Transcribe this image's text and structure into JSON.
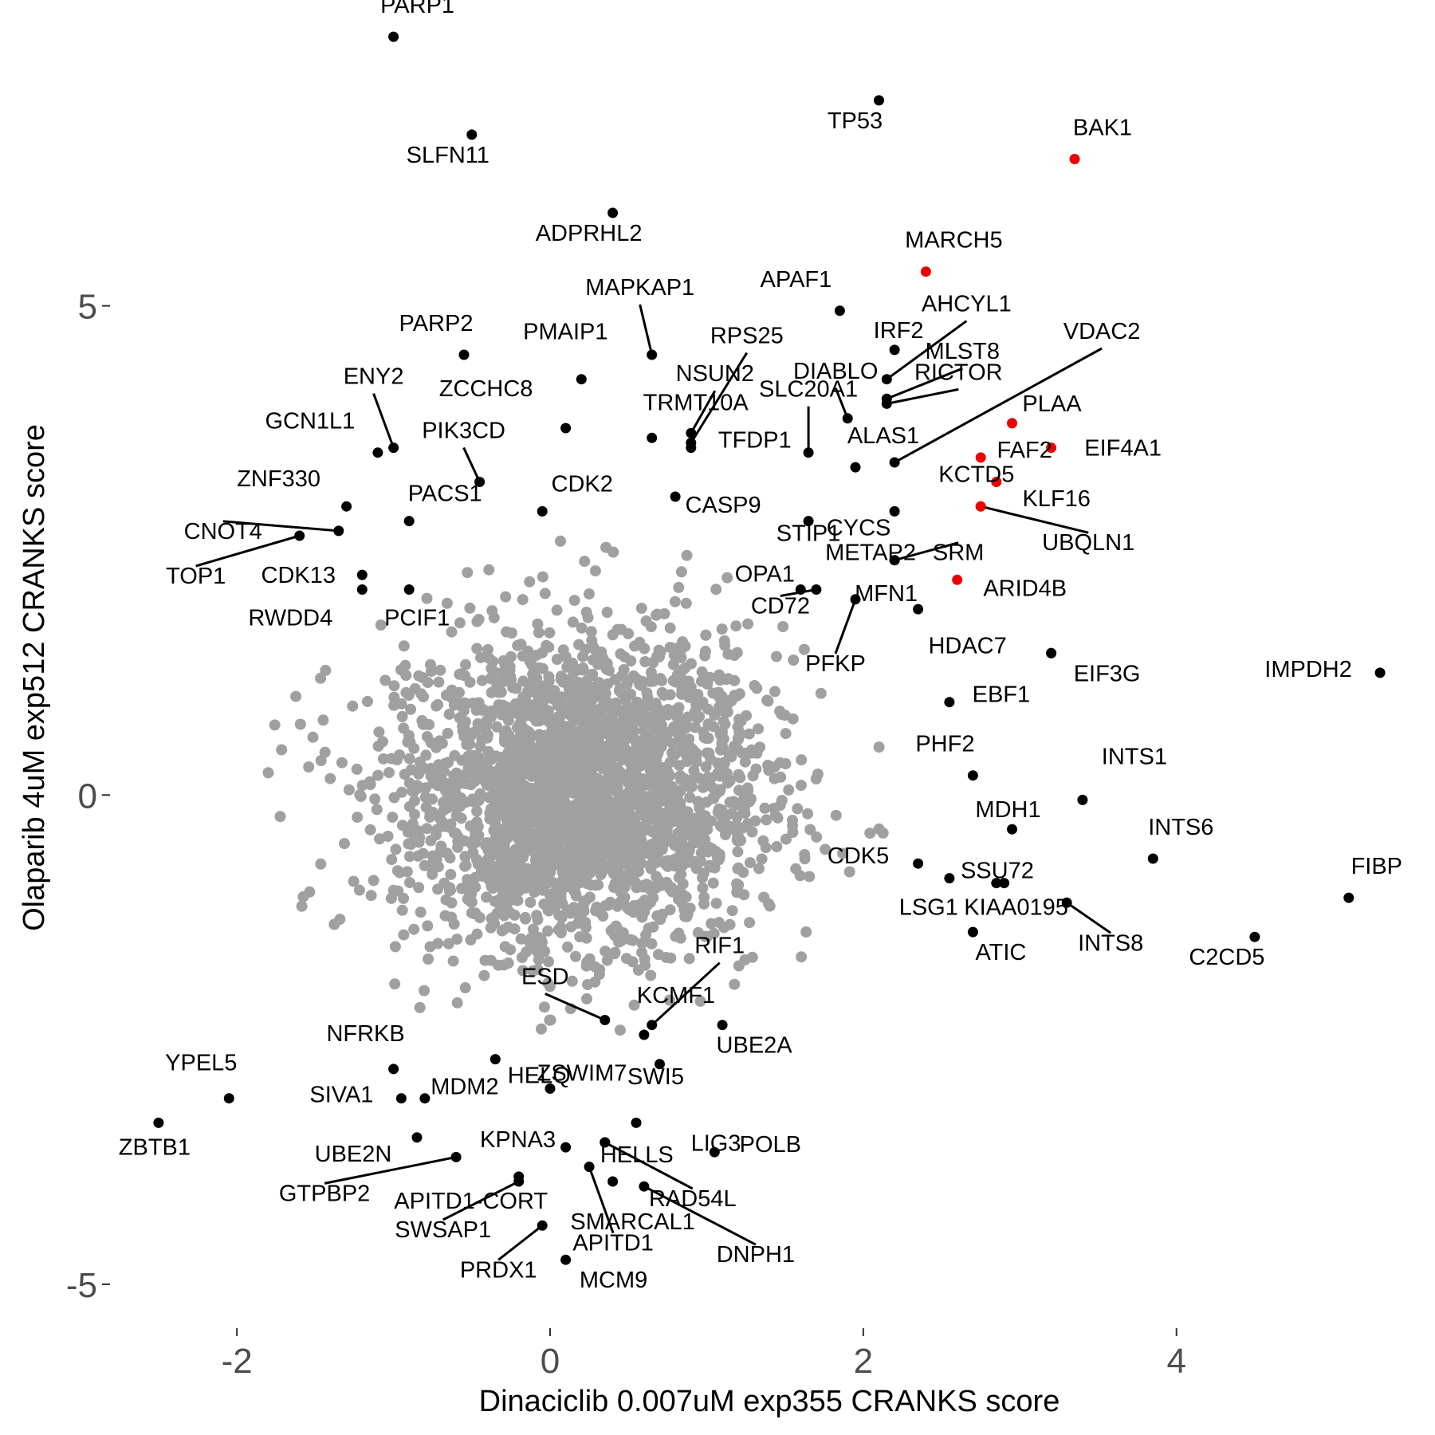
{
  "chart_data": {
    "type": "scatter",
    "xlabel": "Dinaciclib 0.007uM exp355 CRANKS score",
    "ylabel": "Olaparib 4uM exp512 CRANKS score",
    "xlim": [
      -2.8,
      5.6
    ],
    "ylim": [
      -5.4,
      7.8
    ],
    "x_ticks": [
      -2,
      0,
      2,
      4
    ],
    "y_ticks": [
      -5,
      0,
      5
    ],
    "x_tick_labels": [
      "-2",
      "0",
      "2",
      "4"
    ],
    "y_tick_labels": [
      "-5",
      "0",
      "5"
    ],
    "grid": false,
    "legend": "none",
    "colors": {
      "background": "#a0a0a0",
      "highlight": "#000000",
      "red": "#ee0000",
      "axis_text": "#4d4d4d"
    },
    "background_cloud": {
      "description_count": 2600,
      "center": [
        0.2,
        0.0
      ],
      "sd": [
        0.6,
        0.8
      ]
    },
    "labeled_points": [
      {
        "label": "PARP1",
        "x": -1.0,
        "y": 7.75,
        "color": "#000000"
      },
      {
        "label": "SLFN11",
        "x": -0.5,
        "y": 6.75,
        "color": "#000000"
      },
      {
        "label": "TP53",
        "x": 2.1,
        "y": 7.1,
        "color": "#000000"
      },
      {
        "label": "BAK1",
        "x": 3.35,
        "y": 6.5,
        "color": "#ee0000"
      },
      {
        "label": "ADPRHL2",
        "x": 0.4,
        "y": 5.95,
        "color": "#000000"
      },
      {
        "label": "MARCH5",
        "x": 2.4,
        "y": 5.35,
        "color": "#ee0000"
      },
      {
        "label": "APAF1",
        "x": 1.85,
        "y": 4.95,
        "color": "#000000"
      },
      {
        "label": "IRF2",
        "x": 2.2,
        "y": 4.55,
        "color": "#000000"
      },
      {
        "label": "AHCYL1",
        "x": 2.15,
        "y": 4.25,
        "color": "#000000"
      },
      {
        "label": "MLST8",
        "x": 2.15,
        "y": 4.05,
        "color": "#000000"
      },
      {
        "label": "RICTOR",
        "x": 2.15,
        "y": 4.0,
        "color": "#000000"
      },
      {
        "label": "VDAC2",
        "x": 2.2,
        "y": 3.4,
        "color": "#000000"
      },
      {
        "label": "PLAA",
        "x": 2.95,
        "y": 3.8,
        "color": "#ee0000"
      },
      {
        "label": "FAF2",
        "x": 2.75,
        "y": 3.45,
        "color": "#ee0000"
      },
      {
        "label": "EIF4A1",
        "x": 3.2,
        "y": 3.55,
        "color": "#ee0000"
      },
      {
        "label": "KCTD5",
        "x": 2.85,
        "y": 3.2,
        "color": "#ee0000"
      },
      {
        "label": "KLF16",
        "x": 2.75,
        "y": 2.95,
        "color": "#ee0000"
      },
      {
        "label": "UBQLN1",
        "x": 2.75,
        "y": 2.95,
        "color": "#ee0000"
      },
      {
        "label": "ARID4B",
        "x": 2.6,
        "y": 2.2,
        "color": "#ee0000"
      },
      {
        "label": "MAPKAP1",
        "x": 0.65,
        "y": 4.5,
        "color": "#000000"
      },
      {
        "label": "PMAIP1",
        "x": 0.2,
        "y": 4.25,
        "color": "#000000"
      },
      {
        "label": "RPS25",
        "x": 0.9,
        "y": 3.6,
        "color": "#000000"
      },
      {
        "label": "DIABLO",
        "x": 1.9,
        "y": 3.85,
        "color": "#000000"
      },
      {
        "label": "SLC20A1",
        "x": 1.65,
        "y": 3.5,
        "color": "#000000"
      },
      {
        "label": "NSUN2",
        "x": 0.9,
        "y": 3.7,
        "color": "#000000"
      },
      {
        "label": "TRMT10A",
        "x": 0.65,
        "y": 3.65,
        "color": "#000000"
      },
      {
        "label": "ZCCHC8",
        "x": 0.1,
        "y": 3.75,
        "color": "#000000"
      },
      {
        "label": "PARP2",
        "x": -0.55,
        "y": 4.5,
        "color": "#000000"
      },
      {
        "label": "ALAS1",
        "x": 1.95,
        "y": 3.35,
        "color": "#000000"
      },
      {
        "label": "TFDP1",
        "x": 0.9,
        "y": 3.55,
        "color": "#000000"
      },
      {
        "label": "CASP9",
        "x": 0.8,
        "y": 3.05,
        "color": "#000000"
      },
      {
        "label": "CYCS",
        "x": 2.2,
        "y": 2.9,
        "color": "#000000"
      },
      {
        "label": "STIP1",
        "x": 1.65,
        "y": 2.8,
        "color": "#000000"
      },
      {
        "label": "CDK2",
        "x": -0.05,
        "y": 2.9,
        "color": "#000000"
      },
      {
        "label": "ENY2",
        "x": -1.0,
        "y": 3.55,
        "color": "#000000"
      },
      {
        "label": "PIK3CD",
        "x": -0.45,
        "y": 3.2,
        "color": "#000000"
      },
      {
        "label": "GCN1L1",
        "x": -1.1,
        "y": 3.5,
        "color": "#000000"
      },
      {
        "label": "ZNF330",
        "x": -1.3,
        "y": 2.95,
        "color": "#000000"
      },
      {
        "label": "PACS1",
        "x": -0.9,
        "y": 2.8,
        "color": "#000000"
      },
      {
        "label": "CNOT4",
        "x": -1.35,
        "y": 2.7,
        "color": "#000000"
      },
      {
        "label": "TOP1",
        "x": -1.6,
        "y": 2.65,
        "color": "#000000"
      },
      {
        "label": "CDK13",
        "x": -1.2,
        "y": 2.25,
        "color": "#000000"
      },
      {
        "label": "RWDD4",
        "x": -1.2,
        "y": 2.1,
        "color": "#000000"
      },
      {
        "label": "PCIF1",
        "x": -0.9,
        "y": 2.1,
        "color": "#000000"
      },
      {
        "label": "METAP2",
        "x": 2.2,
        "y": 2.4,
        "color": "#000000"
      },
      {
        "label": "SRM",
        "x": 2.2,
        "y": 2.4,
        "color": "#000000"
      },
      {
        "label": "OPA1",
        "x": 1.6,
        "y": 2.1,
        "color": "#000000"
      },
      {
        "label": "MFN1",
        "x": 2.35,
        "y": 1.9,
        "color": "#000000"
      },
      {
        "label": "CD72",
        "x": 1.7,
        "y": 2.1,
        "color": "#000000"
      },
      {
        "label": "PFKP",
        "x": 1.95,
        "y": 2.0,
        "color": "#000000"
      },
      {
        "label": "HDAC7",
        "x": 3.2,
        "y": 1.45,
        "color": "#000000"
      },
      {
        "label": "EIF3G",
        "x": 3.2,
        "y": 1.45,
        "color": "#000000"
      },
      {
        "label": "IMPDH2",
        "x": 5.3,
        "y": 1.25,
        "color": "#000000"
      },
      {
        "label": "EBF1",
        "x": 2.55,
        "y": 0.95,
        "color": "#000000"
      },
      {
        "label": "PHF2",
        "x": 2.7,
        "y": 0.2,
        "color": "#000000"
      },
      {
        "label": "INTS1",
        "x": 3.4,
        "y": -0.05,
        "color": "#000000"
      },
      {
        "label": "MDH1",
        "x": 2.95,
        "y": -0.35,
        "color": "#000000"
      },
      {
        "label": "INTS6",
        "x": 3.85,
        "y": -0.65,
        "color": "#000000"
      },
      {
        "label": "FIBP",
        "x": 5.1,
        "y": -1.05,
        "color": "#000000"
      },
      {
        "label": "CDK5",
        "x": 2.35,
        "y": -0.7,
        "color": "#000000"
      },
      {
        "label": "SSU72",
        "x": 2.55,
        "y": -0.85,
        "color": "#000000"
      },
      {
        "label": "LSG1",
        "x": 2.85,
        "y": -0.9,
        "color": "#000000"
      },
      {
        "label": "KIAA0195",
        "x": 2.9,
        "y": -0.9,
        "color": "#000000"
      },
      {
        "label": "INTS8",
        "x": 3.3,
        "y": -1.1,
        "color": "#000000"
      },
      {
        "label": "ATIC",
        "x": 2.7,
        "y": -1.4,
        "color": "#000000"
      },
      {
        "label": "C2CD5",
        "x": 4.5,
        "y": -1.45,
        "color": "#000000"
      },
      {
        "label": "RIF1",
        "x": 0.65,
        "y": -2.35,
        "color": "#000000"
      },
      {
        "label": "ESD",
        "x": 0.35,
        "y": -2.3,
        "color": "#000000"
      },
      {
        "label": "KCMF1",
        "x": 0.6,
        "y": -2.45,
        "color": "#000000"
      },
      {
        "label": "UBE2A",
        "x": 1.1,
        "y": -2.35,
        "color": "#000000"
      },
      {
        "label": "NFRKB",
        "x": -1.0,
        "y": -2.8,
        "color": "#000000"
      },
      {
        "label": "HELQ",
        "x": -0.35,
        "y": -2.7,
        "color": "#000000"
      },
      {
        "label": "SWI5",
        "x": 0.7,
        "y": -2.75,
        "color": "#000000"
      },
      {
        "label": "YPEL5",
        "x": -2.05,
        "y": -3.1,
        "color": "#000000"
      },
      {
        "label": "MDM2",
        "x": -0.8,
        "y": -3.1,
        "color": "#000000"
      },
      {
        "label": "SIVA1",
        "x": -0.95,
        "y": -3.1,
        "color": "#000000"
      },
      {
        "label": "ZSWIM7",
        "x": 0.0,
        "y": -3.0,
        "color": "#000000"
      },
      {
        "label": "LIG3",
        "x": 0.55,
        "y": -3.35,
        "color": "#000000"
      },
      {
        "label": "ZBTB1",
        "x": -2.5,
        "y": -3.35,
        "color": "#000000"
      },
      {
        "label": "UBE2N",
        "x": -0.85,
        "y": -3.5,
        "color": "#000000"
      },
      {
        "label": "KPNA3",
        "x": 0.1,
        "y": -3.6,
        "color": "#000000"
      },
      {
        "label": "HELLS",
        "x": 0.35,
        "y": -3.55,
        "color": "#000000"
      },
      {
        "label": "POLB",
        "x": 1.05,
        "y": -3.65,
        "color": "#000000"
      },
      {
        "label": "GTPBP2",
        "x": -0.6,
        "y": -3.7,
        "color": "#000000"
      },
      {
        "label": "RAD54L",
        "x": 0.35,
        "y": -3.55,
        "color": "#000000"
      },
      {
        "label": "APITD1-CORT",
        "x": -0.2,
        "y": -3.9,
        "color": "#000000"
      },
      {
        "label": "SMARCAL1",
        "x": 0.4,
        "y": -3.95,
        "color": "#000000"
      },
      {
        "label": "DNPH1",
        "x": 0.6,
        "y": -4.0,
        "color": "#000000"
      },
      {
        "label": "SWSAP1",
        "x": -0.2,
        "y": -3.95,
        "color": "#000000"
      },
      {
        "label": "APITD1",
        "x": 0.25,
        "y": -3.8,
        "color": "#000000"
      },
      {
        "label": "PRDX1",
        "x": -0.05,
        "y": -4.4,
        "color": "#000000"
      },
      {
        "label": "MCM9",
        "x": 0.1,
        "y": -4.75,
        "color": "#000000"
      }
    ]
  }
}
